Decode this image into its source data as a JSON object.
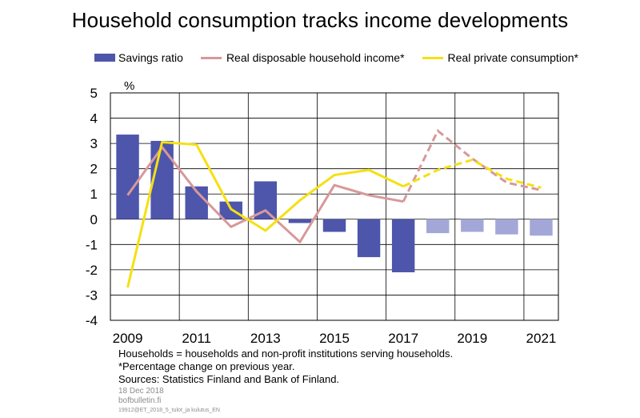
{
  "title": "Household consumption tracks income developments",
  "legend": [
    {
      "label": "Savings ratio",
      "color": "#4d56ab",
      "kind": "bar"
    },
    {
      "label": "Real disposable household income*",
      "color": "#d8989a",
      "kind": "line"
    },
    {
      "label": "Real private consumption*",
      "color": "#f5e012",
      "kind": "line"
    }
  ],
  "notes": {
    "line1": "Households = households and non-profit institutions serving households.",
    "line2": "*Percentage change on previous year.",
    "line3": "Sources: Statistics Finland and Bank of Finland."
  },
  "meta": {
    "date": "18 Dec 2018",
    "site": "bofbulletin.fi",
    "code": "19912@ET_2018_5_tulot_ja kulutus_EN"
  },
  "chart_data": {
    "type": "bar",
    "ylabel": "%",
    "ylim": [
      -4,
      5
    ],
    "yticks": [
      5,
      4,
      3,
      2,
      1,
      0,
      -1,
      -2,
      -3,
      -4
    ],
    "categories": [
      2009,
      2010,
      2011,
      2012,
      2013,
      2014,
      2015,
      2016,
      2017,
      2018,
      2019,
      2020,
      2021
    ],
    "xtick_labels": [
      "2009",
      "2011",
      "2013",
      "2015",
      "2017",
      "2019",
      "2021"
    ],
    "forecast_from": 2018,
    "grid": true,
    "series": [
      {
        "name": "Savings ratio",
        "type": "bar",
        "color": "#4d56ab",
        "forecast_color": "#a3a7d8",
        "values": [
          3.35,
          3.1,
          1.3,
          0.7,
          1.5,
          -0.15,
          -0.5,
          -1.5,
          -2.1,
          -0.55,
          -0.5,
          -0.6,
          -0.65
        ]
      },
      {
        "name": "Real disposable household income*",
        "type": "line",
        "color": "#d8989a",
        "values": [
          0.95,
          2.85,
          1.1,
          -0.3,
          0.35,
          -0.9,
          1.35,
          0.95,
          0.7,
          3.5,
          2.4,
          1.45,
          1.15
        ]
      },
      {
        "name": "Real private consumption*",
        "type": "line",
        "color": "#f5e012",
        "values": [
          -2.7,
          3.05,
          2.95,
          0.4,
          -0.45,
          0.75,
          1.75,
          1.95,
          1.3,
          1.95,
          2.35,
          1.6,
          1.25
        ]
      }
    ]
  }
}
